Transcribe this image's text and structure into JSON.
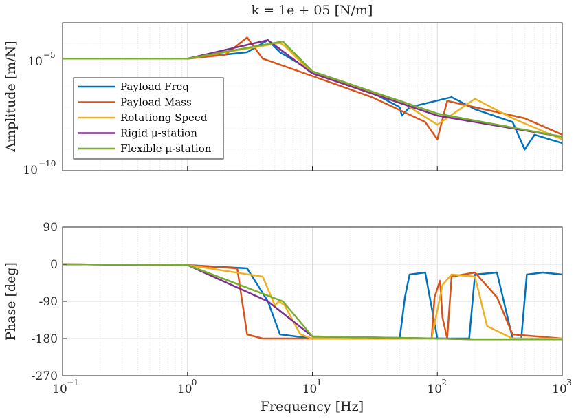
{
  "chart_data": [
    {
      "type": "line",
      "title": "k = 1e + 05 [N/m]",
      "ylabel": "Amplitude [m/N]",
      "xlabel": "",
      "x_scale": "log",
      "y_scale": "log",
      "xlim": [
        0.1,
        1000
      ],
      "ylim": [
        1e-10,
        0.001
      ],
      "x_ticks": [
        0.1,
        1,
        10,
        100,
        1000
      ],
      "y_ticks": [
        {
          "value": 1e-05,
          "label": "10^-5"
        },
        {
          "value": 1e-10,
          "label": "10^-10"
        }
      ],
      "grid": "on (major and minor)",
      "legend": {
        "placement": "left",
        "entries": [
          {
            "label": "Payload Freq",
            "color": "#0072BD"
          },
          {
            "label": "Payload Mass",
            "color": "#D95319"
          },
          {
            "label": "Rotationg Speed",
            "color": "#EDB120"
          },
          {
            "label": "Rigid μ-station",
            "color": "#7E2F8E"
          },
          {
            "label": "Flexible μ-station",
            "color": "#77AC30"
          }
        ]
      },
      "series": [
        {
          "name": "Payload Freq",
          "color": "#0072BD",
          "curves": 3,
          "points": [
            [
              0.1,
              2e-05
            ],
            [
              1,
              2e-05
            ],
            [
              3,
              4e-05
            ],
            [
              4.4,
              0.00015
            ],
            [
              5.5,
              4e-05
            ],
            [
              10,
              5e-06
            ],
            [
              30,
              5e-07
            ],
            [
              50,
              1e-07
            ],
            [
              52,
              4e-08
            ],
            [
              60,
              1e-07
            ],
            [
              130,
              3e-07
            ],
            [
              200,
              8e-08
            ],
            [
              400,
              2e-08
            ],
            [
              500,
              1e-09
            ],
            [
              600,
              5e-09
            ],
            [
              1000,
              2e-09
            ]
          ]
        },
        {
          "name": "Payload Mass",
          "color": "#D95319",
          "curves": 3,
          "points": [
            [
              0.1,
              2e-05
            ],
            [
              1,
              2e-05
            ],
            [
              2,
              3e-05
            ],
            [
              3,
              0.0002
            ],
            [
              4,
              2e-05
            ],
            [
              10,
              3e-06
            ],
            [
              30,
              3e-07
            ],
            [
              80,
              2e-08
            ],
            [
              100,
              3e-09
            ],
            [
              120,
              2e-07
            ],
            [
              200,
              1e-07
            ],
            [
              500,
              3e-08
            ],
            [
              1000,
              5e-09
            ]
          ]
        },
        {
          "name": "Rotationg Speed",
          "color": "#EDB120",
          "curves": 2,
          "points": [
            [
              0.1,
              2e-05
            ],
            [
              1,
              2e-05
            ],
            [
              5.5,
              0.00011
            ],
            [
              6,
              8e-05
            ],
            [
              10,
              4e-06
            ],
            [
              50,
              2e-07
            ],
            [
              100,
              1.5e-08
            ],
            [
              200,
              2.5e-07
            ],
            [
              400,
              3e-08
            ],
            [
              1000,
              3e-09
            ]
          ]
        },
        {
          "name": "Rigid μ-station",
          "color": "#7E2F8E",
          "curves": 1,
          "points": [
            [
              0.1,
              2e-05
            ],
            [
              1,
              2e-05
            ],
            [
              4.4,
              0.00015
            ],
            [
              10,
              4e-06
            ],
            [
              100,
              4e-08
            ],
            [
              1000,
              4e-09
            ]
          ]
        },
        {
          "name": "Flexible μ-station",
          "color": "#77AC30",
          "curves": 1,
          "points": [
            [
              0.1,
              2e-05
            ],
            [
              1,
              2e-05
            ],
            [
              5.8,
              0.00013
            ],
            [
              10,
              5e-06
            ],
            [
              100,
              5e-08
            ],
            [
              1000,
              4e-09
            ]
          ]
        }
      ]
    },
    {
      "type": "line",
      "title": "",
      "ylabel": "Phase [deg]",
      "xlabel": "Frequency [Hz]",
      "x_scale": "log",
      "xlim": [
        0.1,
        1000
      ],
      "ylim": [
        -270,
        90
      ],
      "x_ticks": [
        {
          "value": 0.1,
          "label": "10^-1"
        },
        {
          "value": 1,
          "label": "10^0"
        },
        {
          "value": 10,
          "label": "10^1"
        },
        {
          "value": 100,
          "label": "10^2"
        },
        {
          "value": 1000,
          "label": "10^3"
        }
      ],
      "y_ticks": [
        90,
        0,
        -90,
        -180,
        -270
      ],
      "grid": "on (major and minor)",
      "series": [
        {
          "name": "Payload Freq",
          "color": "#0072BD",
          "points": [
            [
              0.1,
              0
            ],
            [
              1,
              -2
            ],
            [
              3,
              -10
            ],
            [
              4.4,
              -90
            ],
            [
              5.5,
              -170
            ],
            [
              10,
              -180
            ],
            [
              50,
              -180
            ],
            [
              55,
              -80
            ],
            [
              60,
              -25
            ],
            [
              80,
              -20
            ],
            [
              100,
              -180
            ],
            [
              180,
              -180
            ],
            [
              200,
              -25
            ],
            [
              300,
              -20
            ],
            [
              400,
              -180
            ],
            [
              470,
              -180
            ],
            [
              520,
              -25
            ],
            [
              700,
              -20
            ],
            [
              1000,
              -25
            ]
          ]
        },
        {
          "name": "Payload Mass",
          "color": "#D95319",
          "points": [
            [
              0.1,
              0
            ],
            [
              1,
              -2
            ],
            [
              2.5,
              -10
            ],
            [
              3,
              -170
            ],
            [
              4,
              -180
            ],
            [
              10,
              -180
            ],
            [
              90,
              -180
            ],
            [
              95,
              -80
            ],
            [
              105,
              -40
            ],
            [
              110,
              -130
            ],
            [
              120,
              -180
            ],
            [
              130,
              -30
            ],
            [
              200,
              -20
            ],
            [
              300,
              -80
            ],
            [
              400,
              -170
            ],
            [
              1000,
              -180
            ]
          ]
        },
        {
          "name": "Rotationg Speed",
          "color": "#EDB120",
          "points": [
            [
              0.1,
              0
            ],
            [
              1,
              -2
            ],
            [
              4,
              -30
            ],
            [
              5,
              -100
            ],
            [
              5.4,
              -90
            ],
            [
              6,
              -100
            ],
            [
              8,
              -170
            ],
            [
              10,
              -180
            ],
            [
              90,
              -180
            ],
            [
              110,
              -50
            ],
            [
              130,
              -25
            ],
            [
              200,
              -30
            ],
            [
              250,
              -150
            ],
            [
              400,
              -180
            ],
            [
              1000,
              -180
            ]
          ]
        },
        {
          "name": "Rigid μ-station",
          "color": "#7E2F8E",
          "points": [
            [
              0.1,
              0
            ],
            [
              1,
              -2
            ],
            [
              4.4,
              -90
            ],
            [
              10,
              -175
            ],
            [
              100,
              -180
            ],
            [
              200,
              -182
            ],
            [
              1000,
              -182
            ]
          ]
        },
        {
          "name": "Flexible μ-station",
          "color": "#77AC30",
          "points": [
            [
              0.1,
              0
            ],
            [
              1,
              -2
            ],
            [
              5.8,
              -90
            ],
            [
              10,
              -175
            ],
            [
              100,
              -180
            ],
            [
              200,
              -182
            ],
            [
              1000,
              -182
            ]
          ]
        }
      ]
    }
  ]
}
